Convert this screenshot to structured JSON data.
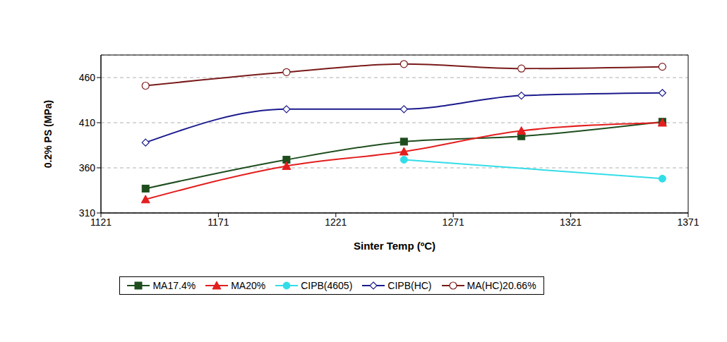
{
  "chart_data": {
    "type": "line",
    "x_label": "Sinter Temp (ºC)",
    "y_label": "0.2% PS (MPa)",
    "x": [
      1140,
      1200,
      1250,
      1300,
      1360
    ],
    "series": [
      {
        "name": "MA17.4%",
        "color": "#1e4d1e",
        "marker": "square",
        "line_style": "smooth",
        "values": [
          337,
          369,
          389,
          395,
          411
        ]
      },
      {
        "name": "MA20%",
        "color": "#e41e1e",
        "marker": "triangle",
        "line_style": "smooth",
        "values": [
          325,
          362,
          378,
          401,
          410
        ]
      },
      {
        "name": "CIPB(4605)",
        "color": "#33dde8",
        "marker": "circle",
        "line_style": "smooth",
        "values": [
          null,
          null,
          369,
          null,
          348
        ]
      },
      {
        "name": "CIPB(HC)",
        "color": "#1a1a8c",
        "marker": "open_diamond",
        "line_style": "smooth",
        "values": [
          388,
          425,
          425,
          440,
          443
        ]
      },
      {
        "name": "MA(HC)20.66%",
        "color": "#7a1a1a",
        "marker": "open_circle",
        "line_style": "smooth",
        "values": [
          451,
          466,
          475,
          470,
          472
        ]
      }
    ],
    "xlim": [
      1121,
      1371
    ],
    "xticks": [
      1121,
      1171,
      1221,
      1271,
      1321,
      1371
    ],
    "ylim": [
      310,
      485
    ],
    "yticks": [
      310,
      360,
      410,
      460
    ],
    "grid": true,
    "legend": "bottom"
  }
}
